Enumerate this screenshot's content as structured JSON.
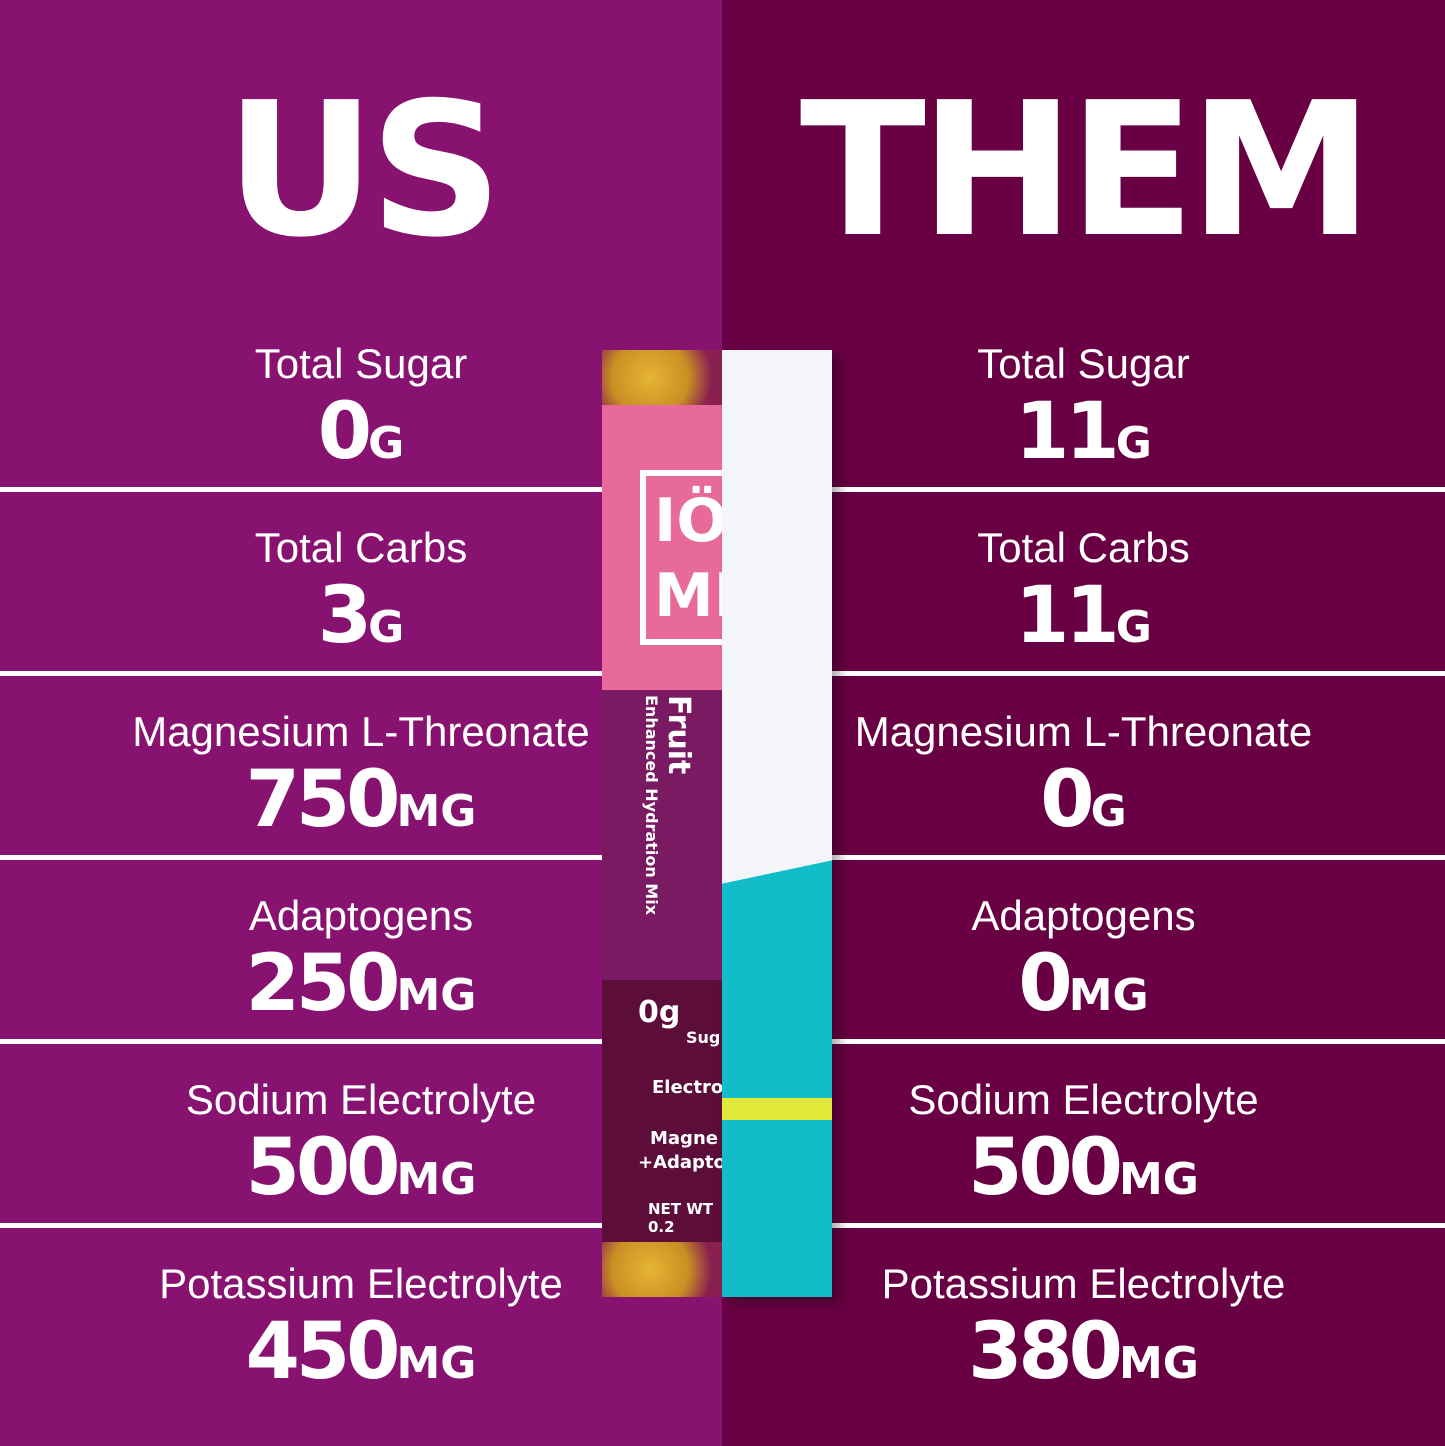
{
  "us": {
    "title": "US",
    "rows": [
      {
        "label": "Total Sugar",
        "value": "0",
        "unit": "G"
      },
      {
        "label": "Total Carbs",
        "value": "3",
        "unit": "G"
      },
      {
        "label": "Magnesium L-Threonate",
        "value": "750",
        "unit": "MG"
      },
      {
        "label": "Adaptogens",
        "value": "250",
        "unit": "MG"
      },
      {
        "label": "Sodium Electrolyte",
        "value": "500",
        "unit": "MG"
      },
      {
        "label": "Potassium Electrolyte",
        "value": "450",
        "unit": "MG"
      }
    ]
  },
  "them": {
    "title": "THEM",
    "rows": [
      {
        "label": "Total Sugar",
        "value": "11",
        "unit": "G"
      },
      {
        "label": "Total Carbs",
        "value": "11",
        "unit": "G"
      },
      {
        "label": "Magnesium L-Threonate",
        "value": "0",
        "unit": "G"
      },
      {
        "label": "Adaptogens",
        "value": "0",
        "unit": "MG"
      },
      {
        "label": "Sodium Electrolyte",
        "value": "500",
        "unit": "MG"
      },
      {
        "label": "Potassium Electrolyte",
        "value": "380",
        "unit": "MG"
      }
    ]
  },
  "packet": {
    "logo": "IÖ MI",
    "flavor": "Fruit",
    "subtitle": "Enhanced Hydration Mix",
    "sugar": "0g",
    "sugar_label": "Sug",
    "electro": "Electro",
    "magne": "Magne",
    "adapt": "+Adapto",
    "netwt": "NET WT 0.2"
  },
  "colors": {
    "us_bg": "#881270",
    "them_bg": "#680043",
    "competitor_accent": "#12bcc9"
  }
}
